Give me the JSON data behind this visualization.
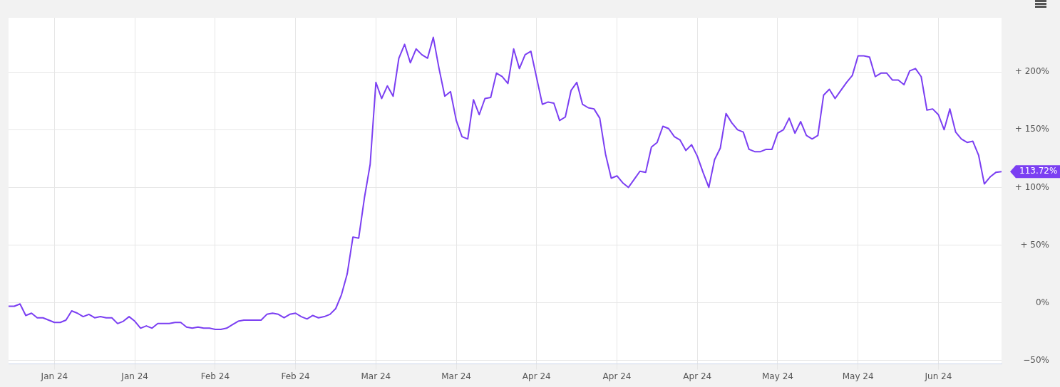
{
  "chart_data": {
    "type": "line",
    "ylim": [
      -53,
      247
    ],
    "categories": [
      null,
      null,
      null,
      null,
      null,
      null,
      null,
      null,
      "Jan 24",
      null,
      null,
      null,
      null,
      null,
      null,
      null,
      null,
      null,
      null,
      null,
      null,
      null,
      "Jan 24",
      null,
      null,
      null,
      null,
      null,
      null,
      null,
      null,
      null,
      null,
      null,
      null,
      null,
      "Feb 24",
      null,
      null,
      null,
      null,
      null,
      null,
      null,
      null,
      null,
      null,
      null,
      null,
      null,
      "Feb 24",
      null,
      null,
      null,
      null,
      null,
      null,
      null,
      null,
      null,
      null,
      null,
      null,
      null,
      "Mar 24",
      null,
      null,
      null,
      null,
      null,
      null,
      null,
      null,
      null,
      null,
      null,
      null,
      null,
      "Mar 24",
      null,
      null,
      null,
      null,
      null,
      null,
      null,
      null,
      null,
      null,
      null,
      null,
      null,
      "Apr 24",
      null,
      null,
      null,
      null,
      null,
      null,
      null,
      null,
      null,
      null,
      null,
      null,
      null,
      "Apr 24",
      null,
      null,
      null,
      null,
      null,
      null,
      null,
      null,
      null,
      null,
      null,
      null,
      null,
      "Apr 24",
      null,
      null,
      null,
      null,
      null,
      null,
      null,
      null,
      null,
      null,
      null,
      null,
      null,
      "May 24",
      null,
      null,
      null,
      null,
      null,
      null,
      null,
      null,
      null,
      null,
      null,
      null,
      null,
      "May 24",
      null,
      null,
      null,
      null,
      null,
      null,
      null,
      null,
      null,
      null,
      null,
      null,
      null,
      "Jun 24",
      null,
      null,
      null,
      null,
      null,
      null,
      null,
      null,
      null,
      null,
      null
    ],
    "yticks": [
      {
        "value": -50,
        "label": "−50%"
      },
      {
        "value": 0,
        "label": "0%"
      },
      {
        "value": 50,
        "label": "+ 50%"
      },
      {
        "value": 100,
        "label": "+ 100%"
      },
      {
        "value": 150,
        "label": "+ 150%"
      },
      {
        "value": 200,
        "label": "+ 200%"
      }
    ],
    "grid": true,
    "legend": false,
    "marker": "none",
    "line_style": "solid",
    "annotations": [
      "113.72%"
    ],
    "series": [
      {
        "color": "#7b3ff2",
        "values": [
          -3,
          -3,
          -1,
          -11,
          -9,
          -13,
          -13,
          -15,
          -17,
          -17,
          -15,
          -7,
          -9,
          -12,
          -10,
          -13,
          -12,
          -13,
          -13,
          -18,
          -16,
          -12,
          -16,
          -22,
          -20,
          -22,
          -18,
          -18,
          -18,
          -17,
          -17,
          -21,
          -22,
          -21,
          -22,
          -22,
          -23,
          -23,
          -22,
          -19,
          -16,
          -15,
          -15,
          -15,
          -15,
          -10,
          -9,
          -10,
          -13,
          -10,
          -9,
          -12,
          -14,
          -11,
          -13,
          -12,
          -10,
          -5,
          7,
          25,
          57,
          56,
          91,
          120,
          191,
          177,
          188,
          179,
          212,
          224,
          208,
          220,
          215,
          212,
          230,
          203,
          179,
          183,
          158,
          144,
          142,
          176,
          163,
          177,
          178,
          199,
          196,
          190,
          220,
          203,
          215,
          218,
          195,
          172,
          174,
          173,
          158,
          161,
          184,
          191,
          172,
          169,
          168,
          160,
          129,
          108,
          110,
          104,
          100,
          107,
          114,
          113,
          135,
          139,
          153,
          151,
          144,
          141,
          132,
          137,
          127,
          113,
          100,
          124,
          134,
          164,
          156,
          150,
          148,
          133,
          131,
          131,
          133,
          133,
          147,
          150,
          160,
          147,
          157,
          145,
          142,
          145,
          180,
          185,
          177,
          184,
          191,
          197,
          214,
          214,
          213,
          196,
          199,
          199,
          193,
          193,
          189,
          201,
          203,
          196,
          167,
          168,
          163,
          150,
          168,
          148,
          142,
          139,
          140,
          128,
          103,
          109,
          113,
          113.72
        ]
      }
    ]
  }
}
